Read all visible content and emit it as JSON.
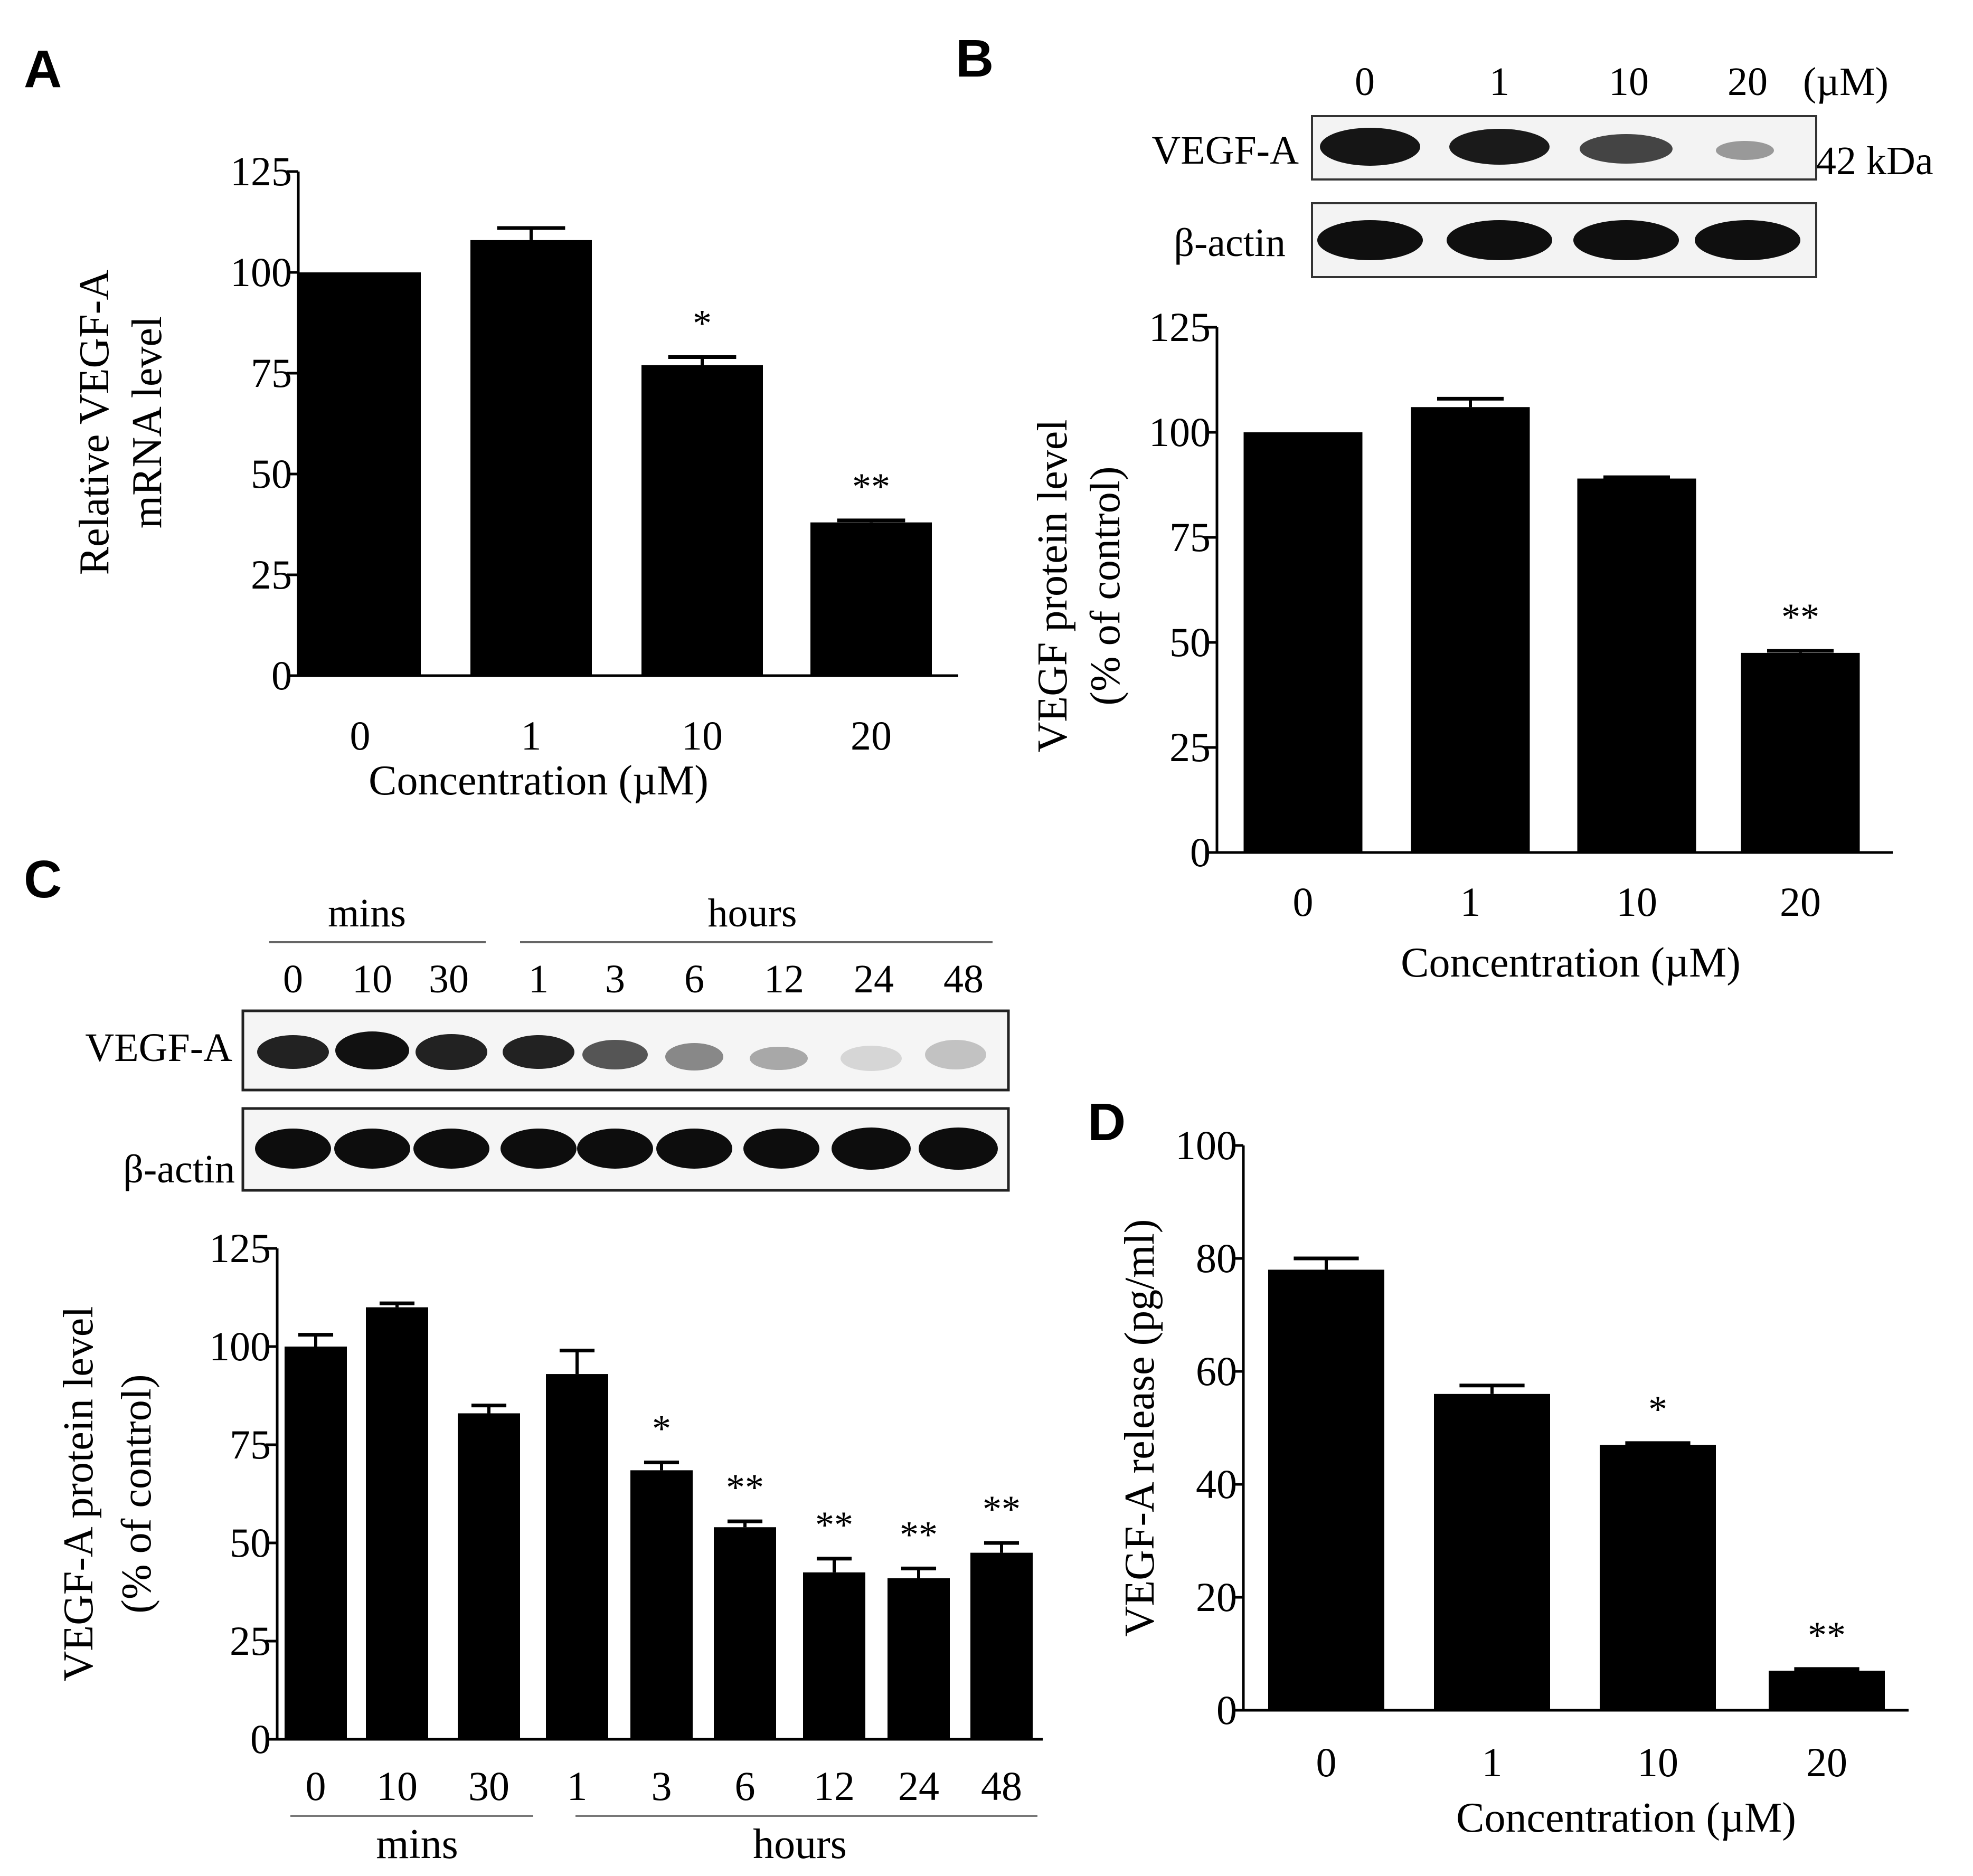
{
  "colors": {
    "bar": "#000000",
    "blot_bg": "#f4f4f4",
    "band": "#111111"
  },
  "panels": {
    "A": {
      "letter": "A"
    },
    "B": {
      "letter": "B",
      "blot": {
        "lanes": [
          "0",
          "1",
          "10",
          "20"
        ],
        "unit": "(µM)",
        "rows": [
          "VEGF-A",
          "β-actin"
        ],
        "size_label": "42 kDa"
      }
    },
    "C": {
      "letter": "C",
      "blot": {
        "group1": "mins",
        "group2": "hours",
        "lanes": [
          "0",
          "10",
          "30",
          "1",
          "3",
          "6",
          "12",
          "24",
          "48"
        ],
        "rows": [
          "VEGF-A",
          "β-actin"
        ]
      }
    },
    "D": {
      "letter": "D"
    }
  },
  "chart_data": [
    {
      "panel": "A",
      "type": "bar",
      "categories": [
        "0",
        "1",
        "10",
        "20"
      ],
      "values": [
        100,
        108,
        77,
        38
      ],
      "errors": [
        0,
        3,
        2,
        0.5
      ],
      "annotations": [
        "",
        "",
        "*",
        "**"
      ],
      "xlabel": "Concentration (µM)",
      "ylabel_lines": [
        "Relative VEGF-A",
        "mRNA level"
      ],
      "ylim": [
        0,
        125
      ],
      "yticks": [
        "0",
        "25",
        "50",
        "75",
        "100",
        "125"
      ]
    },
    {
      "panel": "B",
      "type": "bar",
      "categories": [
        "0",
        "1",
        "10",
        "20"
      ],
      "values": [
        100,
        106,
        89,
        47.5
      ],
      "errors": [
        0,
        2,
        0.3,
        0.5
      ],
      "annotations": [
        "",
        "",
        "",
        "**"
      ],
      "xlabel": "Concentration (µM)",
      "ylabel_lines": [
        "VEGF protein level",
        "(% of control)"
      ],
      "ylim": [
        0,
        125
      ],
      "yticks": [
        "0",
        "25",
        "50",
        "75",
        "100",
        "125"
      ]
    },
    {
      "panel": "C",
      "type": "bar",
      "categories": [
        "0",
        "10",
        "30",
        "1",
        "3",
        "6",
        "12",
        "24",
        "48"
      ],
      "values": [
        100,
        110,
        83,
        93,
        68.5,
        54,
        42.5,
        41,
        47.5
      ],
      "errors": [
        3,
        1,
        2,
        6,
        2,
        1.5,
        3.5,
        2.5,
        2.5
      ],
      "annotations": [
        "",
        "",
        "",
        "",
        "*",
        "**",
        "**",
        "**",
        "**"
      ],
      "group_labels": [
        "mins",
        "hours"
      ],
      "xlabel": "",
      "ylabel_lines": [
        "VEGF-A protein level",
        "(% of control)"
      ],
      "ylim": [
        0,
        125
      ],
      "yticks": [
        "0",
        "25",
        "50",
        "75",
        "100",
        "125"
      ]
    },
    {
      "panel": "D",
      "type": "bar",
      "categories": [
        "0",
        "1",
        "10",
        "20"
      ],
      "values": [
        78,
        56,
        47,
        7
      ],
      "errors": [
        2,
        1.5,
        0.3,
        0.3
      ],
      "annotations": [
        "",
        "",
        "*",
        "**"
      ],
      "xlabel": "Concentration (µM)",
      "ylabel_lines": [
        "VEGF-A release (pg/ml)"
      ],
      "ylim": [
        0,
        100
      ],
      "yticks": [
        "0",
        "20",
        "40",
        "60",
        "80",
        "100"
      ]
    }
  ]
}
